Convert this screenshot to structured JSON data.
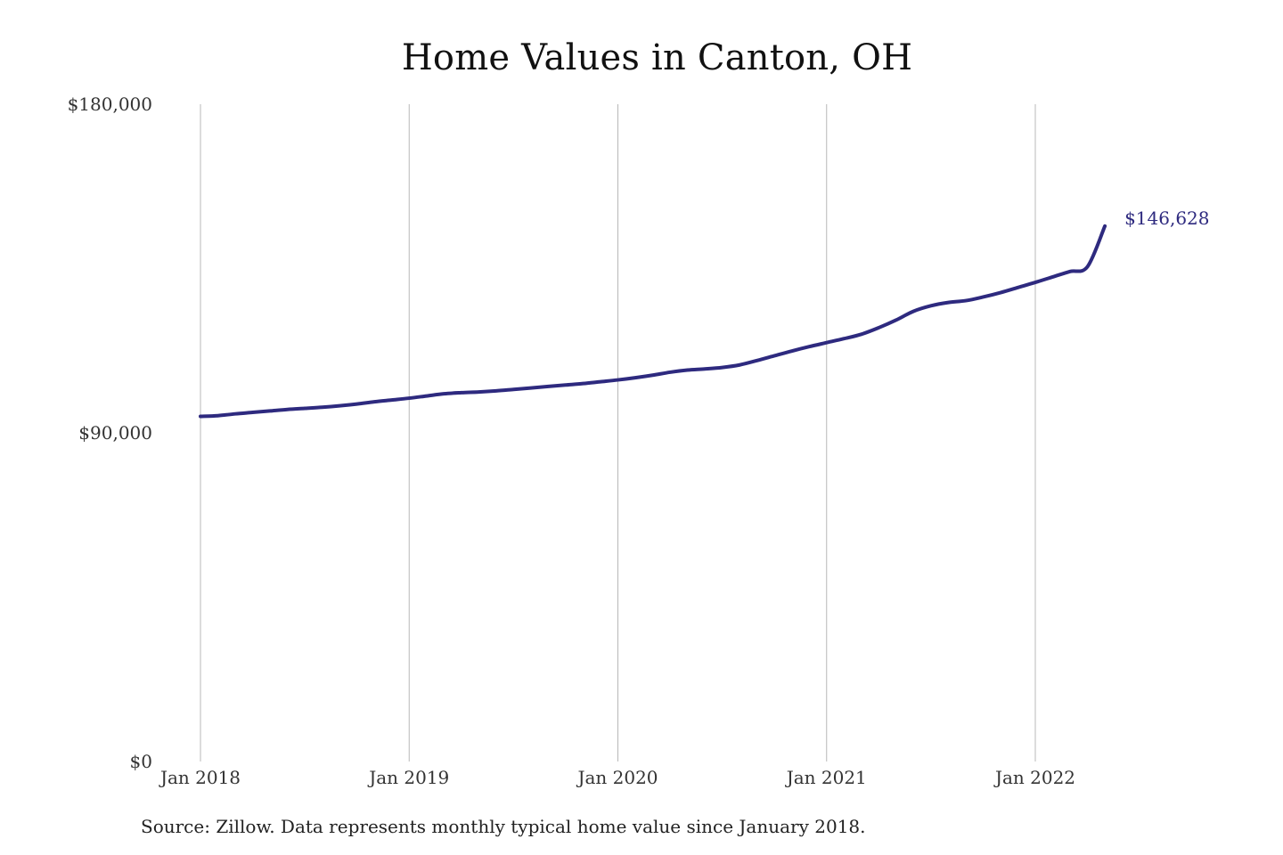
{
  "chart_data": {
    "type": "line",
    "title": "Home Values in Canton, OH",
    "xlabel": "",
    "ylabel": "",
    "ylim": [
      0,
      180000
    ],
    "y_ticks": [
      {
        "value": 0,
        "label": "$0"
      },
      {
        "value": 90000,
        "label": "$90,000"
      },
      {
        "value": 180000,
        "label": "$180,000"
      }
    ],
    "x_ticks": [
      {
        "value": "2018-01",
        "label": "Jan 2018"
      },
      {
        "value": "2019-01",
        "label": "Jan 2019"
      },
      {
        "value": "2020-01",
        "label": "Jan 2020"
      },
      {
        "value": "2021-01",
        "label": "Jan 2021"
      },
      {
        "value": "2022-01",
        "label": "Jan 2022"
      }
    ],
    "grid": {
      "vertical": true,
      "horizontal": false
    },
    "legend": "none",
    "line_color": "#2e2a7f",
    "series": [
      {
        "x": [
          "2018-01",
          "2018-02",
          "2018-03",
          "2018-04",
          "2018-05",
          "2018-06",
          "2018-07",
          "2018-08",
          "2018-09",
          "2018-10",
          "2018-11",
          "2018-12",
          "2019-01",
          "2019-02",
          "2019-03",
          "2019-04",
          "2019-05",
          "2019-06",
          "2019-07",
          "2019-08",
          "2019-09",
          "2019-10",
          "2019-11",
          "2019-12",
          "2020-01",
          "2020-02",
          "2020-03",
          "2020-04",
          "2020-05",
          "2020-06",
          "2020-07",
          "2020-08",
          "2020-09",
          "2020-10",
          "2020-11",
          "2020-12",
          "2021-01",
          "2021-02",
          "2021-03",
          "2021-04",
          "2021-05",
          "2021-06",
          "2021-07",
          "2021-08",
          "2021-09",
          "2021-10",
          "2021-11",
          "2021-12",
          "2022-01",
          "2022-02",
          "2022-03",
          "2022-04",
          "2022-05"
        ],
        "values": [
          94500,
          94700,
          95200,
          95600,
          96000,
          96400,
          96700,
          97000,
          97400,
          97900,
          98500,
          99000,
          99500,
          100100,
          100700,
          101000,
          101200,
          101500,
          101900,
          102300,
          102700,
          103100,
          103500,
          104000,
          104500,
          105100,
          105800,
          106600,
          107200,
          107500,
          107900,
          108600,
          109800,
          111100,
          112400,
          113600,
          114700,
          115800,
          117000,
          118800,
          120900,
          123300,
          124800,
          125700,
          126200,
          127200,
          128400,
          129800,
          131200,
          132700,
          134200,
          135500,
          146628
        ]
      }
    ],
    "end_label": "$146,628"
  },
  "source_note": "Source: Zillow. Data represents monthly typical home value since January 2018."
}
